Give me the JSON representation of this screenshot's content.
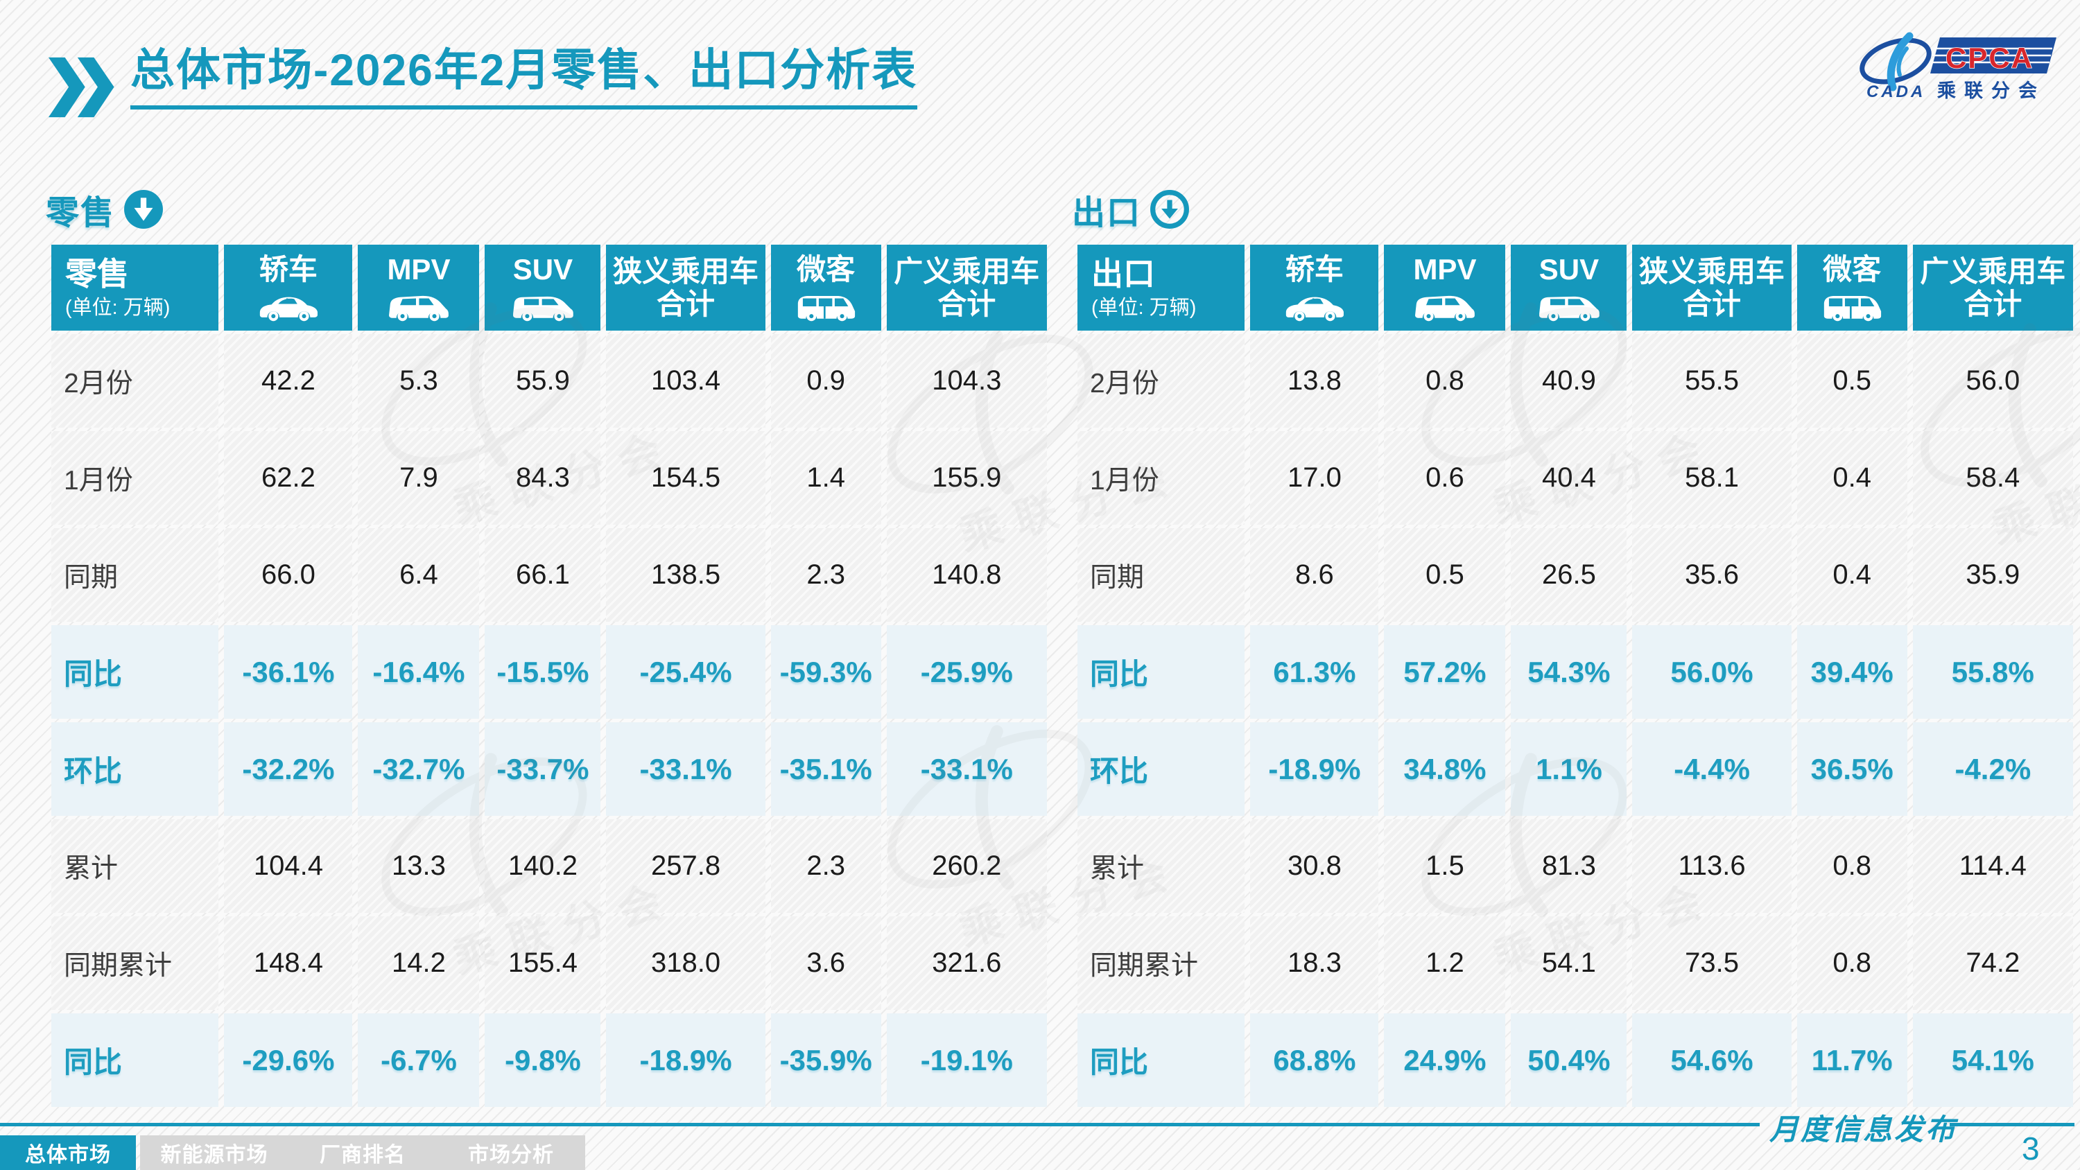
{
  "title": {
    "highlight": "总体市场",
    "rest": "-2026年2月零售、出口分析表"
  },
  "logo": {
    "org_en": "CPCA",
    "org_abbr": "CADA",
    "org_cn": "乘联分会"
  },
  "tables": [
    {
      "id": "retail",
      "section_label": "零售",
      "arrow_style": "solid",
      "header_label": "零售",
      "unit_label": "(单位: 万辆)",
      "columns": [
        {
          "label": "轿车",
          "icon": "sedan-icon"
        },
        {
          "label": "MPV",
          "icon": "mpv-icon"
        },
        {
          "label": "SUV",
          "icon": "suv-icon"
        },
        {
          "label": "狭义乘用车合计",
          "icon": ""
        },
        {
          "label": "微客",
          "icon": "microvan-icon"
        },
        {
          "label": "广义乘用车合计",
          "icon": ""
        }
      ],
      "rows": [
        {
          "label": "2月份",
          "type": "num",
          "values": [
            "42.2",
            "5.3",
            "55.9",
            "103.4",
            "0.9",
            "104.3"
          ]
        },
        {
          "label": "1月份",
          "type": "num",
          "values": [
            "62.2",
            "7.9",
            "84.3",
            "154.5",
            "1.4",
            "155.9"
          ]
        },
        {
          "label": "同期",
          "type": "num",
          "values": [
            "66.0",
            "6.4",
            "66.1",
            "138.5",
            "2.3",
            "140.8"
          ]
        },
        {
          "label": "同比",
          "type": "pct",
          "values": [
            "-36.1%",
            "-16.4%",
            "-15.5%",
            "-25.4%",
            "-59.3%",
            "-25.9%"
          ]
        },
        {
          "label": "环比",
          "type": "pct",
          "values": [
            "-32.2%",
            "-32.7%",
            "-33.7%",
            "-33.1%",
            "-35.1%",
            "-33.1%"
          ]
        },
        {
          "label": "累计",
          "type": "num",
          "values": [
            "104.4",
            "13.3",
            "140.2",
            "257.8",
            "2.3",
            "260.2"
          ]
        },
        {
          "label": "同期累计",
          "type": "num",
          "values": [
            "148.4",
            "14.2",
            "155.4",
            "318.0",
            "3.6",
            "321.6"
          ]
        },
        {
          "label": "同比",
          "type": "pct",
          "values": [
            "-29.6%",
            "-6.7%",
            "-9.8%",
            "-18.9%",
            "-35.9%",
            "-19.1%"
          ]
        }
      ]
    },
    {
      "id": "export",
      "section_label": "出口",
      "arrow_style": "ring",
      "header_label": "出口",
      "unit_label": "(单位: 万辆)",
      "columns": [
        {
          "label": "轿车",
          "icon": "sedan-icon"
        },
        {
          "label": "MPV",
          "icon": "mpv-icon"
        },
        {
          "label": "SUV",
          "icon": "suv-icon"
        },
        {
          "label": "狭义乘用车合计",
          "icon": ""
        },
        {
          "label": "微客",
          "icon": "microvan-icon"
        },
        {
          "label": "广义乘用车合计",
          "icon": ""
        }
      ],
      "rows": [
        {
          "label": "2月份",
          "type": "num",
          "values": [
            "13.8",
            "0.8",
            "40.9",
            "55.5",
            "0.5",
            "56.0"
          ]
        },
        {
          "label": "1月份",
          "type": "num",
          "values": [
            "17.0",
            "0.6",
            "40.4",
            "58.1",
            "0.4",
            "58.4"
          ]
        },
        {
          "label": "同期",
          "type": "num",
          "values": [
            "8.6",
            "0.5",
            "26.5",
            "35.6",
            "0.4",
            "35.9"
          ]
        },
        {
          "label": "同比",
          "type": "pct",
          "values": [
            "61.3%",
            "57.2%",
            "54.3%",
            "56.0%",
            "39.4%",
            "55.8%"
          ]
        },
        {
          "label": "环比",
          "type": "pct",
          "values": [
            "-18.9%",
            "34.8%",
            "1.1%",
            "-4.4%",
            "36.5%",
            "-4.2%"
          ]
        },
        {
          "label": "累计",
          "type": "num",
          "values": [
            "30.8",
            "1.5",
            "81.3",
            "113.6",
            "0.8",
            "114.4"
          ]
        },
        {
          "label": "同期累计",
          "type": "num",
          "values": [
            "18.3",
            "1.2",
            "54.1",
            "73.5",
            "0.8",
            "74.2"
          ]
        },
        {
          "label": "同比",
          "type": "pct",
          "values": [
            "68.8%",
            "24.9%",
            "50.4%",
            "54.6%",
            "11.7%",
            "54.1%"
          ]
        }
      ]
    }
  ],
  "footer": {
    "slogan": "月度信息发布",
    "page_number": "3",
    "tabs": [
      {
        "label": "总体市场",
        "active": true
      },
      {
        "label": "新能源市场",
        "active": false
      },
      {
        "label": "厂商排名",
        "active": false
      },
      {
        "label": "市场分析",
        "active": false
      }
    ]
  },
  "watermark_text": "乘联分会",
  "colors": {
    "teal": "#1598BC",
    "pct_text": "#1E9DC0",
    "pct_bg": "#EAF3F8",
    "tab_gray": "#D7D7D7",
    "logo_blue": "#1C4FA0",
    "logo_light_blue": "#2D9CDB",
    "logo_red": "#D7262C"
  }
}
